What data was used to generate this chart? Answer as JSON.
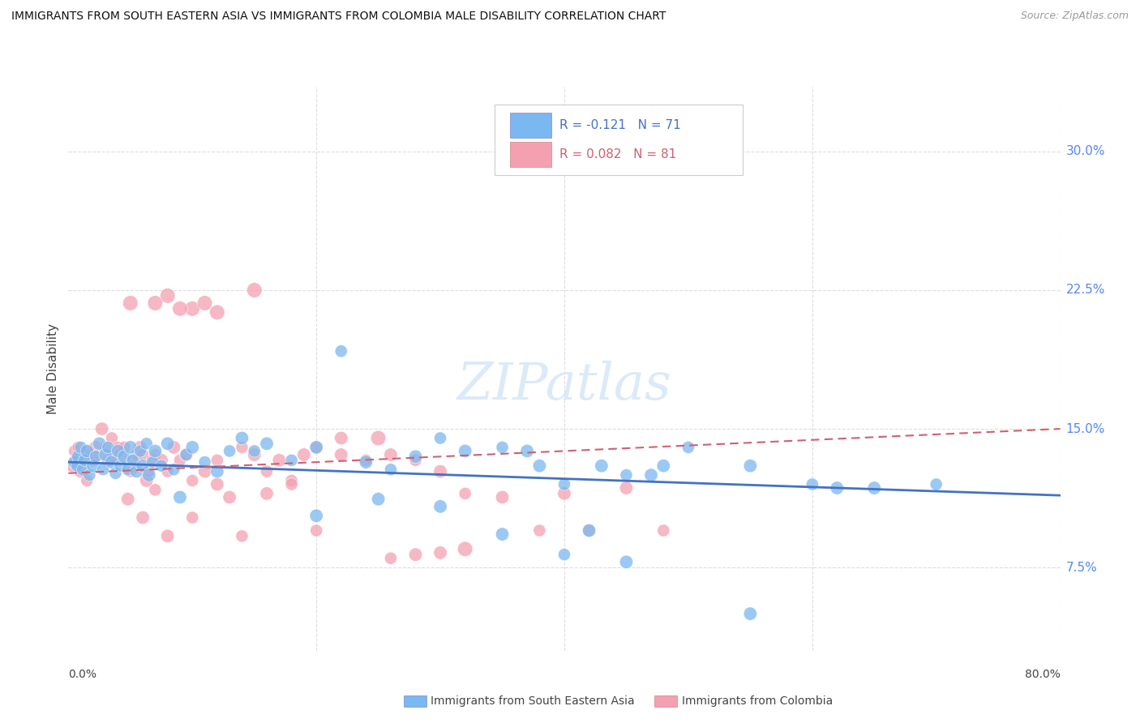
{
  "title": "IMMIGRANTS FROM SOUTH EASTERN ASIA VS IMMIGRANTS FROM COLOMBIA MALE DISABILITY CORRELATION CHART",
  "source": "Source: ZipAtlas.com",
  "ylabel": "Male Disability",
  "ytick_labels": [
    "7.5%",
    "15.0%",
    "22.5%",
    "30.0%"
  ],
  "ytick_values": [
    0.075,
    0.15,
    0.225,
    0.3
  ],
  "xlim": [
    0.0,
    0.8
  ],
  "ylim": [
    0.03,
    0.335
  ],
  "legend_blue_R": "R = -0.121",
  "legend_blue_N": "N = 71",
  "legend_pink_R": "R = 0.082",
  "legend_pink_N": "N = 81",
  "blue_color": "#7ab8f0",
  "pink_color": "#f4a0b0",
  "blue_line_color": "#4472c4",
  "pink_line_color": "#d06070",
  "watermark": "ZIPatlas",
  "blue_trendline_y_start": 0.132,
  "blue_trendline_y_end": 0.114,
  "pink_trendline_y_start": 0.126,
  "pink_trendline_y_end": 0.15,
  "blue_scatter_x": [
    0.005,
    0.007,
    0.008,
    0.01,
    0.012,
    0.013,
    0.015,
    0.017,
    0.02,
    0.022,
    0.025,
    0.028,
    0.03,
    0.032,
    0.035,
    0.038,
    0.04,
    0.042,
    0.045,
    0.048,
    0.05,
    0.052,
    0.055,
    0.058,
    0.06,
    0.063,
    0.065,
    0.068,
    0.07,
    0.075,
    0.08,
    0.085,
    0.09,
    0.095,
    0.1,
    0.11,
    0.12,
    0.13,
    0.14,
    0.15,
    0.16,
    0.18,
    0.2,
    0.22,
    0.24,
    0.26,
    0.28,
    0.3,
    0.32,
    0.35,
    0.38,
    0.4,
    0.42,
    0.45,
    0.48,
    0.5,
    0.55,
    0.6,
    0.65,
    0.7,
    0.35,
    0.4,
    0.45,
    0.2,
    0.25,
    0.3,
    0.37,
    0.43,
    0.47,
    0.55,
    0.62
  ],
  "blue_scatter_y": [
    0.132,
    0.13,
    0.135,
    0.14,
    0.128,
    0.133,
    0.138,
    0.125,
    0.13,
    0.135,
    0.142,
    0.128,
    0.136,
    0.14,
    0.132,
    0.126,
    0.138,
    0.13,
    0.135,
    0.128,
    0.14,
    0.133,
    0.127,
    0.138,
    0.13,
    0.142,
    0.125,
    0.132,
    0.138,
    0.13,
    0.142,
    0.128,
    0.113,
    0.136,
    0.14,
    0.132,
    0.127,
    0.138,
    0.145,
    0.138,
    0.142,
    0.133,
    0.14,
    0.192,
    0.132,
    0.128,
    0.135,
    0.145,
    0.138,
    0.14,
    0.13,
    0.12,
    0.095,
    0.125,
    0.13,
    0.14,
    0.13,
    0.12,
    0.118,
    0.12,
    0.093,
    0.082,
    0.078,
    0.103,
    0.112,
    0.108,
    0.138,
    0.13,
    0.125,
    0.05,
    0.118
  ],
  "blue_scatter_size": [
    35,
    30,
    35,
    30,
    35,
    30,
    35,
    30,
    35,
    30,
    35,
    30,
    35,
    30,
    35,
    30,
    35,
    30,
    35,
    30,
    35,
    30,
    35,
    30,
    35,
    30,
    35,
    30,
    35,
    30,
    35,
    30,
    35,
    30,
    35,
    30,
    35,
    30,
    35,
    30,
    35,
    30,
    35,
    30,
    35,
    30,
    35,
    30,
    35,
    30,
    35,
    30,
    35,
    30,
    35,
    30,
    35,
    30,
    35,
    30,
    35,
    30,
    35,
    35,
    35,
    35,
    35,
    35,
    35,
    35,
    35
  ],
  "pink_scatter_x": [
    0.003,
    0.005,
    0.007,
    0.008,
    0.01,
    0.012,
    0.013,
    0.015,
    0.017,
    0.02,
    0.022,
    0.025,
    0.027,
    0.03,
    0.032,
    0.035,
    0.037,
    0.04,
    0.042,
    0.045,
    0.048,
    0.05,
    0.052,
    0.055,
    0.058,
    0.06,
    0.063,
    0.065,
    0.068,
    0.07,
    0.075,
    0.08,
    0.085,
    0.09,
    0.095,
    0.1,
    0.11,
    0.12,
    0.13,
    0.14,
    0.15,
    0.16,
    0.17,
    0.18,
    0.19,
    0.2,
    0.22,
    0.24,
    0.26,
    0.28,
    0.3,
    0.32,
    0.35,
    0.38,
    0.4,
    0.42,
    0.45,
    0.48,
    0.28,
    0.2,
    0.06,
    0.07,
    0.08,
    0.1,
    0.12,
    0.14,
    0.16,
    0.18,
    0.22,
    0.26,
    0.3,
    0.05,
    0.08,
    0.12,
    0.1,
    0.15,
    0.07,
    0.09,
    0.11,
    0.25,
    0.32
  ],
  "pink_scatter_y": [
    0.13,
    0.138,
    0.133,
    0.14,
    0.127,
    0.132,
    0.138,
    0.122,
    0.136,
    0.133,
    0.14,
    0.136,
    0.15,
    0.14,
    0.133,
    0.145,
    0.135,
    0.14,
    0.136,
    0.14,
    0.112,
    0.127,
    0.133,
    0.136,
    0.14,
    0.136,
    0.122,
    0.127,
    0.133,
    0.136,
    0.133,
    0.127,
    0.14,
    0.133,
    0.136,
    0.122,
    0.127,
    0.133,
    0.113,
    0.14,
    0.136,
    0.127,
    0.133,
    0.122,
    0.136,
    0.14,
    0.136,
    0.133,
    0.136,
    0.133,
    0.127,
    0.115,
    0.113,
    0.095,
    0.115,
    0.095,
    0.118,
    0.095,
    0.082,
    0.095,
    0.102,
    0.117,
    0.092,
    0.102,
    0.12,
    0.092,
    0.115,
    0.12,
    0.145,
    0.08,
    0.083,
    0.218,
    0.222,
    0.213,
    0.215,
    0.225,
    0.218,
    0.215,
    0.218,
    0.145,
    0.085
  ],
  "pink_scatter_size": [
    35,
    30,
    35,
    30,
    35,
    30,
    35,
    30,
    35,
    30,
    35,
    30,
    35,
    30,
    35,
    30,
    35,
    30,
    35,
    30,
    35,
    30,
    35,
    30,
    35,
    30,
    35,
    30,
    35,
    30,
    35,
    30,
    35,
    30,
    35,
    30,
    35,
    30,
    35,
    30,
    35,
    30,
    35,
    30,
    35,
    30,
    35,
    30,
    35,
    30,
    35,
    30,
    35,
    30,
    35,
    30,
    35,
    30,
    35,
    30,
    35,
    30,
    35,
    30,
    35,
    30,
    35,
    30,
    35,
    30,
    35,
    45,
    45,
    45,
    45,
    45,
    45,
    45,
    45,
    45,
    45
  ]
}
